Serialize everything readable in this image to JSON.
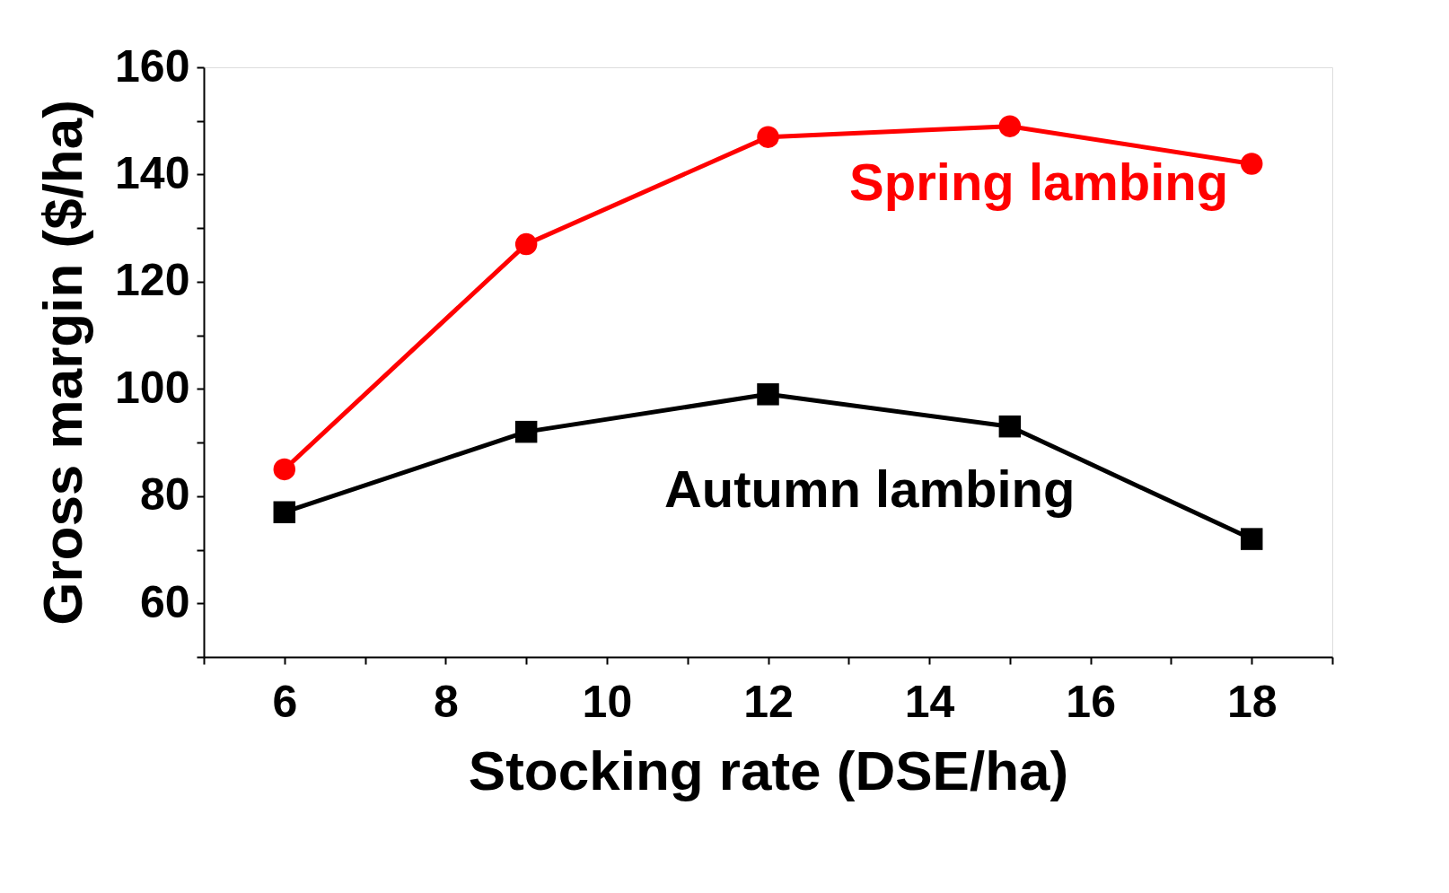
{
  "chart_data": {
    "type": "line",
    "xlabel": "Stocking rate (DSE/ha)",
    "ylabel": "Gross margin ($/ha)",
    "x": [
      6,
      9,
      12,
      15,
      18
    ],
    "series": [
      {
        "name": "Spring lambing",
        "color": "#ff0000",
        "marker": "circle",
        "values": [
          85,
          127,
          147,
          149,
          142
        ]
      },
      {
        "name": "Autumn lambing",
        "color": "#000000",
        "marker": "square",
        "values": [
          77,
          92,
          99,
          93,
          72
        ]
      }
    ],
    "xlim": [
      5,
      19
    ],
    "ylim": [
      50,
      160
    ],
    "xticks": [
      {
        "value": 5,
        "label": null
      },
      6,
      {
        "value": 7,
        "label": null
      },
      8,
      {
        "value": 9,
        "label": null
      },
      10,
      {
        "value": 11,
        "label": null
      },
      12,
      {
        "value": 13,
        "label": null
      },
      14,
      {
        "value": 15,
        "label": null
      },
      16,
      {
        "value": 17,
        "label": null
      },
      18,
      {
        "value": 19,
        "label": null
      }
    ],
    "yticks": [
      {
        "value": 50,
        "label": null
      },
      60,
      {
        "value": 70,
        "label": null
      },
      80,
      {
        "value": 90,
        "label": null
      },
      100,
      {
        "value": 110,
        "label": null
      },
      120,
      {
        "value": 130,
        "label": null
      },
      140,
      {
        "value": 150,
        "label": null
      },
      160
    ],
    "grid": false,
    "line_style": "solid"
  }
}
